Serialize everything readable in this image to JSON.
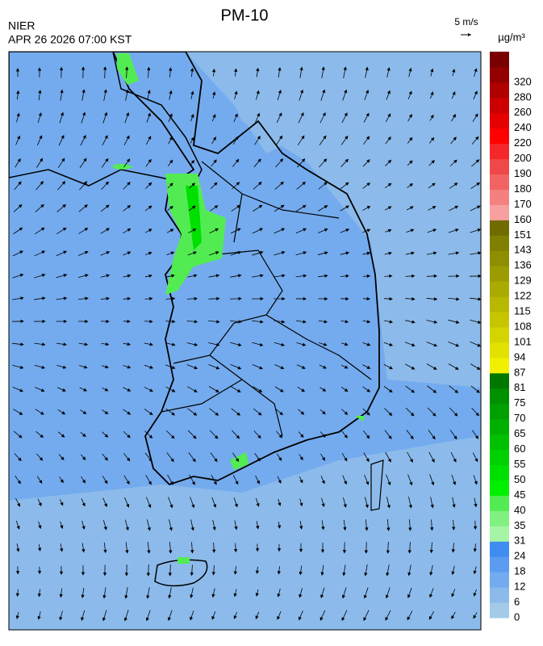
{
  "header": {
    "title": "PM-10",
    "agency": "NIER",
    "datetime": "APR 26 2026 07:00 KST",
    "wind_scale": "5 m/s"
  },
  "legend": {
    "unit": "µg/m³",
    "ticks": [
      0,
      6,
      12,
      18,
      24,
      31,
      35,
      40,
      45,
      50,
      55,
      60,
      65,
      70,
      75,
      81,
      87,
      94,
      101,
      108,
      115,
      122,
      129,
      136,
      143,
      151,
      160,
      170,
      180,
      190,
      200,
      220,
      240,
      260,
      280,
      320
    ],
    "colors": [
      "#a3cbe8",
      "#8cbbeb",
      "#74abee",
      "#5c9cf0",
      "#3f8df1",
      "#a6f5a6",
      "#80f080",
      "#52ec52",
      "#00f000",
      "#00e000",
      "#00d000",
      "#00c000",
      "#00b000",
      "#00a000",
      "#009000",
      "#007800",
      "#f0f000",
      "#e2e200",
      "#d4d400",
      "#c6c600",
      "#b8b800",
      "#aaaa00",
      "#9c9c00",
      "#8e8e00",
      "#808000",
      "#706c00",
      "#f8a0a0",
      "#f48080",
      "#f26464",
      "#f04848",
      "#f42828",
      "#ff0000",
      "#e60000",
      "#cc0000",
      "#b00000",
      "#940000",
      "#780000"
    ]
  }
}
